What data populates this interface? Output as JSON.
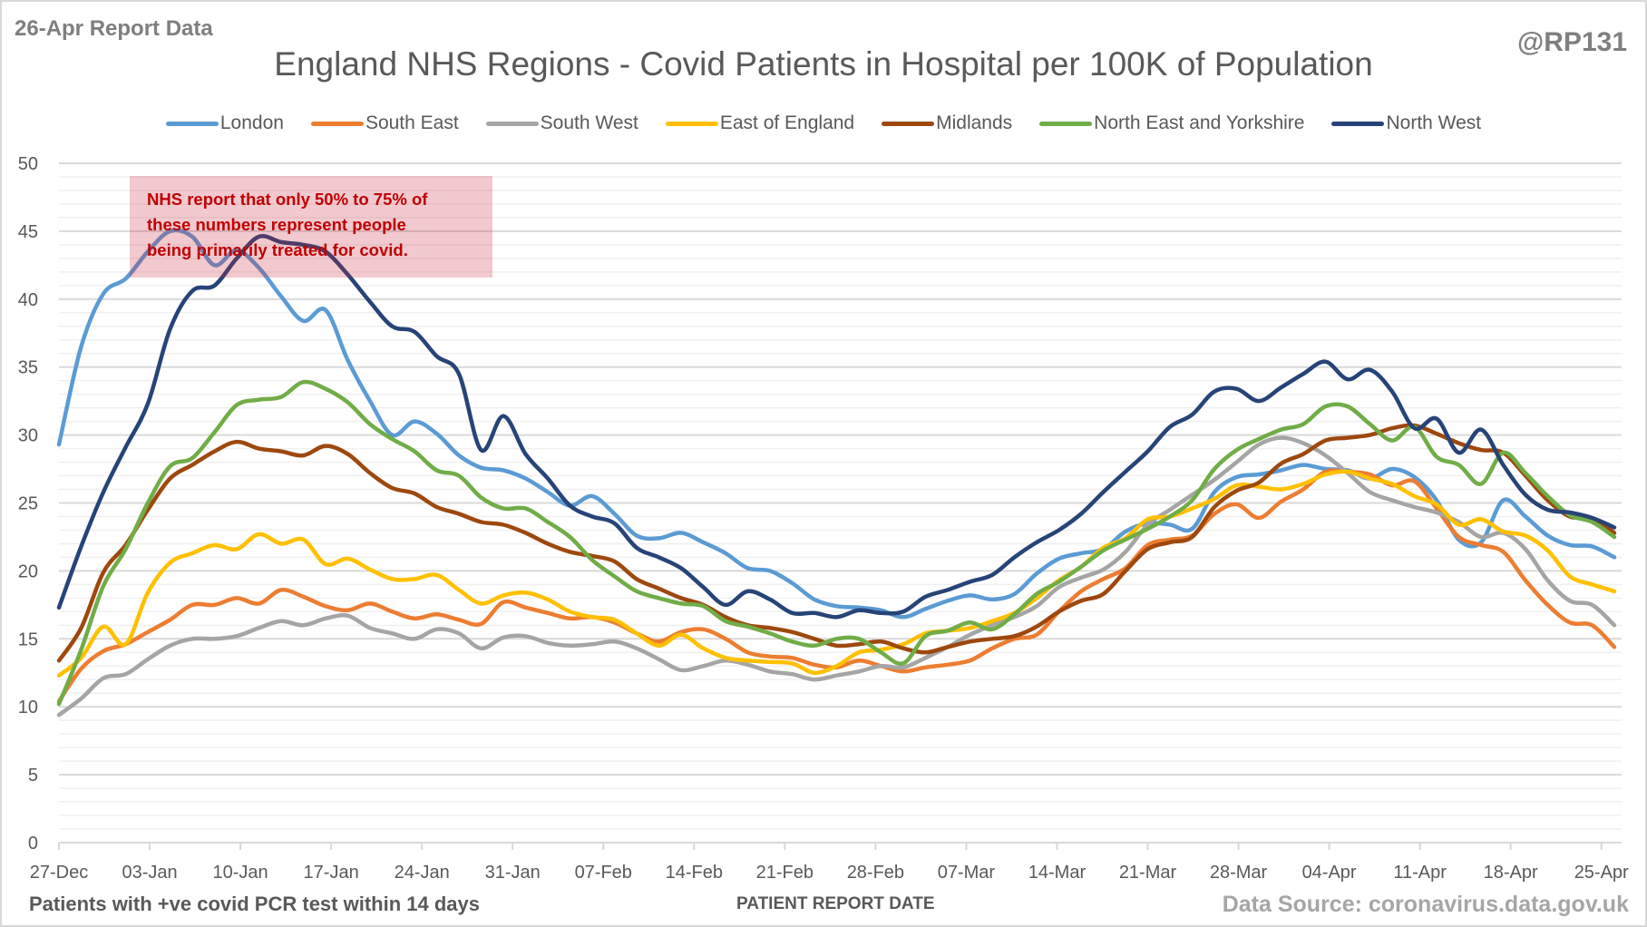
{
  "header": {
    "report_tag": "26-Apr Report Data",
    "handle": "@RP131"
  },
  "footer": {
    "left_note": "Patients with +ve covid PCR test within 14 days",
    "x_axis_title": "PATIENT REPORT DATE",
    "source": "Data Source: coronavirus.data.gov.uk"
  },
  "annotation": {
    "lines": [
      "NHS report that only 50% to 75% of",
      "these numbers represent people",
      "being primarily treated for covid."
    ],
    "text_color": "#c00000"
  },
  "chart_data": {
    "type": "line",
    "title": "England NHS Regions - Covid Patients in Hospital per 100K of Population",
    "xlabel": "PATIENT REPORT DATE",
    "ylabel": "",
    "ylim": [
      0,
      50
    ],
    "yticks": [
      0,
      5,
      10,
      15,
      20,
      25,
      30,
      35,
      40,
      45,
      50
    ],
    "minor_grid_step": 1,
    "grid": true,
    "legend_position": "top",
    "x_start_label": "27-Dec",
    "x_step_days": 2,
    "xticks": [
      "27-Dec",
      "03-Jan",
      "10-Jan",
      "17-Jan",
      "24-Jan",
      "31-Jan",
      "07-Feb",
      "14-Feb",
      "21-Feb",
      "28-Feb",
      "07-Mar",
      "14-Mar",
      "21-Mar",
      "28-Mar",
      "04-Apr",
      "11-Apr",
      "18-Apr",
      "25-Apr"
    ],
    "xtick_step_days": 7,
    "x_total_days": 120,
    "series": [
      {
        "name": "London",
        "color": "#5b9bd5",
        "values": [
          29.3,
          36.5,
          40.4,
          41.5,
          43.5,
          45.0,
          44.6,
          42.5,
          43.6,
          42.3,
          40.2,
          38.4,
          39.2,
          35.5,
          32.5,
          30.0,
          31.0,
          30.1,
          28.5,
          27.6,
          27.4,
          26.8,
          25.8,
          24.8,
          25.5,
          24.2,
          22.6,
          22.4,
          22.8,
          22.1,
          21.3,
          20.2,
          20.0,
          19.1,
          17.9,
          17.4,
          17.3,
          17.1,
          16.6,
          17.2,
          17.8,
          18.2,
          17.9,
          18.3,
          19.8,
          20.9,
          21.3,
          21.6,
          22.9,
          23.5,
          23.4,
          23.1,
          25.8,
          26.9,
          27.1,
          27.4,
          27.8,
          27.5,
          27.4,
          26.8,
          27.5,
          26.9,
          25.2,
          22.3,
          22.1,
          25.2,
          24.0,
          22.6,
          21.9,
          21.8,
          21.0
        ]
      },
      {
        "name": "South East",
        "color": "#ed7d31",
        "values": [
          10.4,
          12.8,
          14.1,
          14.6,
          15.5,
          16.4,
          17.5,
          17.5,
          18.0,
          17.6,
          18.6,
          18.1,
          17.4,
          17.1,
          17.6,
          17.0,
          16.5,
          16.8,
          16.4,
          16.1,
          17.7,
          17.3,
          16.9,
          16.5,
          16.6,
          16.2,
          15.4,
          14.8,
          15.5,
          15.7,
          15.0,
          14.0,
          13.7,
          13.6,
          13.1,
          12.9,
          13.4,
          13.0,
          12.6,
          12.9,
          13.1,
          13.4,
          14.3,
          15.0,
          15.3,
          17.0,
          18.5,
          19.4,
          20.2,
          21.9,
          22.3,
          22.6,
          24.2,
          24.9,
          23.9,
          25.1,
          26.0,
          27.3,
          27.3,
          27.1,
          26.3,
          26.6,
          24.6,
          22.5,
          21.9,
          21.4,
          19.3,
          17.5,
          16.2,
          16.0,
          14.4
        ]
      },
      {
        "name": "South West",
        "color": "#a5a5a5",
        "values": [
          9.4,
          10.6,
          12.1,
          12.4,
          13.5,
          14.5,
          15.0,
          15.0,
          15.2,
          15.8,
          16.3,
          16.0,
          16.5,
          16.7,
          15.8,
          15.4,
          15.0,
          15.7,
          15.4,
          14.3,
          15.1,
          15.2,
          14.7,
          14.5,
          14.6,
          14.8,
          14.3,
          13.5,
          12.7,
          13.0,
          13.4,
          13.1,
          12.6,
          12.4,
          12.0,
          12.3,
          12.6,
          13.0,
          12.9,
          13.6,
          14.4,
          15.3,
          16.0,
          16.6,
          17.4,
          18.8,
          19.5,
          20.1,
          21.4,
          23.4,
          24.5,
          25.6,
          26.7,
          28.0,
          29.3,
          29.8,
          29.4,
          28.5,
          27.2,
          25.8,
          25.2,
          24.7,
          24.3,
          23.6,
          22.5,
          22.8,
          21.6,
          19.3,
          17.8,
          17.5,
          16.0
        ]
      },
      {
        "name": "East of England",
        "color": "#ffc000",
        "values": [
          12.3,
          13.6,
          15.9,
          14.6,
          18.4,
          20.6,
          21.3,
          21.9,
          21.6,
          22.7,
          22.0,
          22.3,
          20.5,
          20.9,
          20.1,
          19.4,
          19.4,
          19.7,
          18.6,
          17.6,
          18.2,
          18.4,
          17.9,
          17.0,
          16.6,
          16.4,
          15.4,
          14.5,
          15.3,
          14.3,
          13.6,
          13.4,
          13.3,
          13.2,
          12.5,
          13.0,
          14.0,
          14.2,
          14.6,
          15.4,
          15.6,
          15.8,
          16.3,
          16.9,
          18.0,
          19.3,
          20.3,
          21.7,
          22.4,
          23.8,
          24.0,
          24.6,
          25.3,
          26.3,
          26.2,
          26.0,
          26.4,
          27.1,
          27.3,
          26.8,
          26.4,
          25.5,
          24.9,
          23.4,
          23.8,
          22.9,
          22.6,
          21.5,
          19.6,
          19.0,
          18.5
        ]
      },
      {
        "name": "Midlands",
        "color": "#9e480e",
        "values": [
          13.4,
          15.8,
          19.9,
          21.9,
          24.5,
          26.8,
          27.8,
          28.8,
          29.5,
          29.0,
          28.8,
          28.5,
          29.2,
          28.6,
          27.2,
          26.1,
          25.7,
          24.7,
          24.2,
          23.6,
          23.4,
          22.8,
          22.0,
          21.4,
          21.1,
          20.7,
          19.4,
          18.7,
          18.0,
          17.5,
          16.6,
          16.0,
          15.8,
          15.5,
          15.0,
          14.5,
          14.6,
          14.8,
          14.3,
          14.0,
          14.4,
          14.8,
          15.0,
          15.2,
          15.9,
          17.0,
          17.8,
          18.3,
          20.0,
          21.6,
          22.1,
          22.5,
          24.7,
          25.9,
          26.5,
          27.9,
          28.6,
          29.6,
          29.8,
          30.0,
          30.5,
          30.7,
          30.1,
          29.4,
          28.9,
          28.7,
          27.0,
          25.2,
          24.0,
          23.9,
          22.8
        ]
      },
      {
        "name": "North East and Yorkshire",
        "color": "#70ad47",
        "values": [
          10.2,
          14.2,
          18.9,
          21.6,
          25.0,
          27.7,
          28.3,
          30.2,
          32.2,
          32.6,
          32.8,
          33.9,
          33.4,
          32.4,
          30.8,
          29.7,
          28.8,
          27.4,
          27.0,
          25.4,
          24.6,
          24.6,
          23.6,
          22.5,
          20.8,
          19.6,
          18.5,
          18.0,
          17.6,
          17.4,
          16.3,
          15.9,
          15.4,
          14.8,
          14.5,
          15.0,
          15.0,
          14.0,
          13.2,
          15.2,
          15.6,
          16.2,
          15.7,
          16.8,
          18.3,
          19.2,
          20.3,
          21.5,
          22.3,
          23.1,
          24.0,
          25.2,
          27.5,
          28.9,
          29.7,
          30.4,
          30.8,
          32.1,
          32.1,
          30.8,
          29.6,
          30.6,
          28.4,
          27.8,
          26.4,
          28.7,
          27.2,
          25.5,
          24.1,
          23.6,
          22.5
        ]
      },
      {
        "name": "North West",
        "color": "#264478",
        "values": [
          17.3,
          21.8,
          25.8,
          29.1,
          32.3,
          37.8,
          40.6,
          41.0,
          43.0,
          44.6,
          44.2,
          44.0,
          43.5,
          41.8,
          39.8,
          38.0,
          37.6,
          35.8,
          34.5,
          28.9,
          31.4,
          28.6,
          26.8,
          24.8,
          24.0,
          23.5,
          21.7,
          21.0,
          20.2,
          18.8,
          17.5,
          18.5,
          17.9,
          16.9,
          16.9,
          16.6,
          17.1,
          16.9,
          17.0,
          18.1,
          18.6,
          19.2,
          19.7,
          21.0,
          22.1,
          23.0,
          24.2,
          25.8,
          27.3,
          28.8,
          30.6,
          31.5,
          33.2,
          33.4,
          32.5,
          33.5,
          34.5,
          35.4,
          34.1,
          34.8,
          33.2,
          30.5,
          31.2,
          28.7,
          30.4,
          27.8,
          25.6,
          24.5,
          24.3,
          23.9,
          23.2
        ]
      }
    ]
  }
}
